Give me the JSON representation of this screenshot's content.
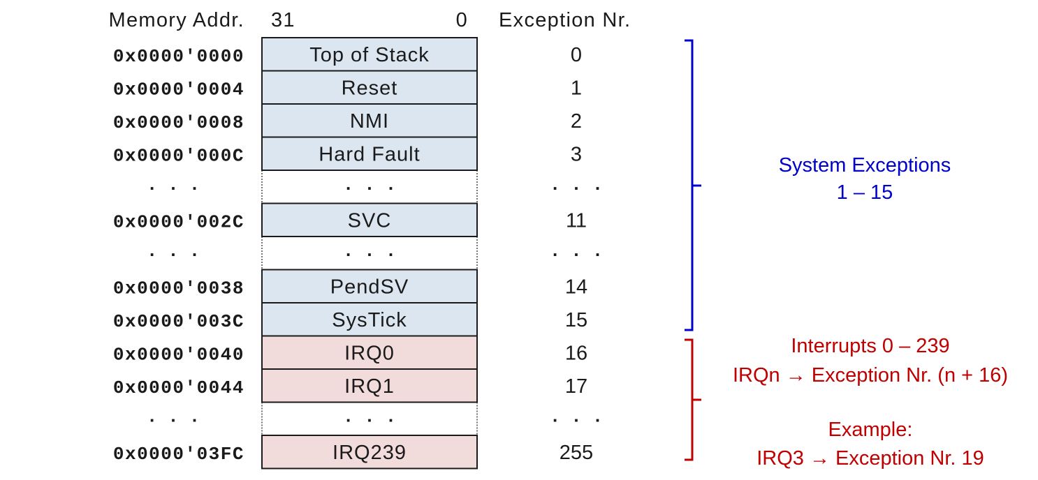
{
  "headers": {
    "memory_addr": "Memory Addr.",
    "bit_high": "31",
    "bit_low": "0",
    "exception_nr": "Exception Nr."
  },
  "rows": [
    {
      "addr": "0x0000'0000",
      "label": "Top of Stack",
      "nr": "0",
      "kind": "system"
    },
    {
      "addr": "0x0000'0004",
      "label": "Reset",
      "nr": "1",
      "kind": "system"
    },
    {
      "addr": "0x0000'0008",
      "label": "NMI",
      "nr": "2",
      "kind": "system"
    },
    {
      "addr": "0x0000'000C",
      "label": "Hard Fault",
      "nr": "3",
      "kind": "system"
    },
    {
      "addr": ". . .",
      "label": ". . .",
      "nr": ". . .",
      "kind": "gap"
    },
    {
      "addr": "0x0000'002C",
      "label": "SVC",
      "nr": "11",
      "kind": "system"
    },
    {
      "addr": ". . .",
      "label": ". . .",
      "nr": ". . .",
      "kind": "gap"
    },
    {
      "addr": "0x0000'0038",
      "label": "PendSV",
      "nr": "14",
      "kind": "system"
    },
    {
      "addr": "0x0000'003C",
      "label": "SysTick",
      "nr": "15",
      "kind": "system"
    },
    {
      "addr": "0x0000'0040",
      "label": "IRQ0",
      "nr": "16",
      "kind": "irq"
    },
    {
      "addr": "0x0000'0044",
      "label": "IRQ1",
      "nr": "17",
      "kind": "irq"
    },
    {
      "addr": ". . .",
      "label": ". . .",
      "nr": ". . .",
      "kind": "gap"
    },
    {
      "addr": "0x0000'03FC",
      "label": "IRQ239",
      "nr": "255",
      "kind": "irq"
    }
  ],
  "annotations": {
    "system": {
      "line1": "System Exceptions",
      "line2": "1 – 15"
    },
    "interrupts": {
      "line1": "Interrupts 0 – 239",
      "line2": "IRQn → Exception Nr. (n + 16)"
    },
    "example": {
      "line1": "Example:",
      "line2": "IRQ3 → Exception Nr. 19"
    }
  },
  "colors": {
    "system_fill": "#dce6f0",
    "irq_fill": "#f2dcdb",
    "system_brace": "#0000cc",
    "irq_brace": "#c00000",
    "border": "#1a1a1a"
  }
}
